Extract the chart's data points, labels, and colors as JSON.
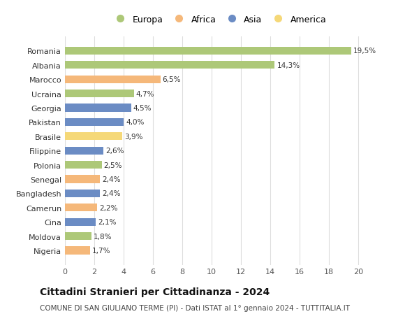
{
  "categories": [
    "Romania",
    "Albania",
    "Marocco",
    "Ucraina",
    "Georgia",
    "Pakistan",
    "Brasile",
    "Filippine",
    "Polonia",
    "Senegal",
    "Bangladesh",
    "Camerun",
    "Cina",
    "Moldova",
    "Nigeria"
  ],
  "values": [
    19.5,
    14.3,
    6.5,
    4.7,
    4.5,
    4.0,
    3.9,
    2.6,
    2.5,
    2.4,
    2.4,
    2.2,
    2.1,
    1.8,
    1.7
  ],
  "labels": [
    "19,5%",
    "14,3%",
    "6,5%",
    "4,7%",
    "4,5%",
    "4,0%",
    "3,9%",
    "2,6%",
    "2,5%",
    "2,4%",
    "2,4%",
    "2,2%",
    "2,1%",
    "1,8%",
    "1,7%"
  ],
  "continent": [
    "Europa",
    "Europa",
    "Africa",
    "Europa",
    "Asia",
    "Asia",
    "America",
    "Asia",
    "Europa",
    "Africa",
    "Asia",
    "Africa",
    "Asia",
    "Europa",
    "Africa"
  ],
  "colors": {
    "Europa": "#adc878",
    "Africa": "#f5b87a",
    "Asia": "#6b8cc4",
    "America": "#f5d878"
  },
  "legend_order": [
    "Europa",
    "Africa",
    "Asia",
    "America"
  ],
  "title": "Cittadini Stranieri per Cittadinanza - 2024",
  "subtitle": "COMUNE DI SAN GIULIANO TERME (PI) - Dati ISTAT al 1° gennaio 2024 - TUTTITALIA.IT",
  "xlim": [
    0,
    21
  ],
  "xticks": [
    0,
    2,
    4,
    6,
    8,
    10,
    12,
    14,
    16,
    18,
    20
  ],
  "background_color": "#ffffff",
  "grid_color": "#dddddd",
  "bar_height": 0.55,
  "title_fontsize": 10,
  "subtitle_fontsize": 7.5,
  "label_fontsize": 7.5,
  "tick_fontsize": 8,
  "legend_fontsize": 9
}
